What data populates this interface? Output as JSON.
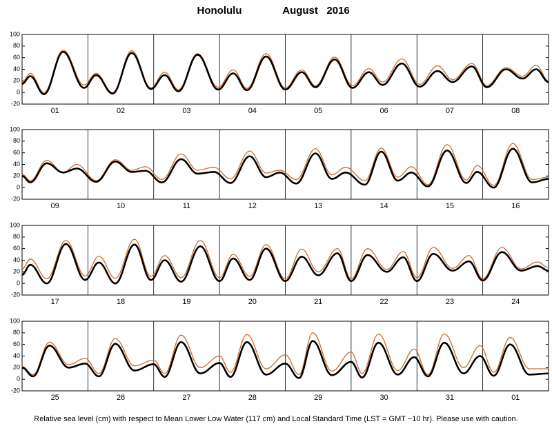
{
  "title": "Honolulu",
  "subtitle": "August   2016",
  "note": "Relative sea level (cm) with respect to Mean Lower Low Water (117 cm) and Local Standard Time (LST = GMT −10 hr). Please use with caution.",
  "chart_data": [
    {
      "type": "line",
      "categories": [
        "01",
        "02",
        "03",
        "04",
        "05",
        "06",
        "07",
        "08"
      ],
      "x": [
        0,
        3,
        8,
        15,
        22.6,
        27,
        33,
        40,
        47,
        52,
        57,
        64,
        71.5,
        77,
        82,
        89,
        96,
        102,
        107,
        114,
        120.5,
        126.5,
        131.5,
        138.5,
        145,
        151.5,
        157,
        164,
        169.5,
        176.5,
        182.5,
        187.5,
        192
      ],
      "series": [
        {
          "color": "#cc6a2a",
          "values": [
            18,
            33,
            0,
            73,
            13,
            33,
            0,
            72,
            8,
            35,
            5,
            67,
            9,
            39,
            7,
            67,
            8,
            39,
            12,
            61,
            12,
            41,
            18,
            58,
            14,
            46,
            22,
            50,
            12,
            43,
            28,
            47,
            20
          ]
        },
        {
          "color": "#000000",
          "values": [
            15,
            28,
            -3,
            70,
            8,
            30,
            -2,
            68,
            6,
            30,
            2,
            65,
            5,
            33,
            4,
            62,
            5,
            35,
            9,
            57,
            8,
            35,
            13,
            50,
            10,
            37,
            18,
            45,
            9,
            40,
            24,
            40,
            18
          ]
        }
      ],
      "xlim": [
        0,
        192
      ],
      "xticks": [
        24,
        48,
        72,
        96,
        120,
        144,
        168
      ],
      "ylim": [
        -20,
        100
      ],
      "yticks": [
        -20,
        0,
        20,
        40,
        60,
        80,
        100
      ]
    },
    {
      "type": "line",
      "categories": [
        "09",
        "10",
        "11",
        "12",
        "13",
        "14",
        "15",
        "16"
      ],
      "x": [
        0,
        3,
        9,
        15,
        20,
        27,
        34,
        40,
        45,
        51,
        58,
        64,
        70,
        76,
        83,
        89,
        94,
        100,
        107,
        113,
        118,
        125,
        131,
        137,
        142,
        148,
        155,
        162,
        166,
        172,
        179,
        186,
        192
      ],
      "series": [
        {
          "color": "#cc6a2a",
          "values": [
            23,
            12,
            47,
            26,
            40,
            12,
            48,
            30,
            36,
            14,
            58,
            30,
            35,
            15,
            63,
            25,
            30,
            14,
            67,
            22,
            35,
            12,
            68,
            18,
            36,
            5,
            74,
            13,
            38,
            4,
            76,
            14,
            18
          ]
        },
        {
          "color": "#000000",
          "values": [
            20,
            9,
            42,
            26,
            33,
            10,
            45,
            27,
            29,
            9,
            49,
            24,
            27,
            8,
            54,
            18,
            26,
            7,
            59,
            15,
            26,
            5,
            62,
            12,
            26,
            2,
            64,
            8,
            27,
            0,
            67,
            9,
            15
          ]
        }
      ],
      "xlim": [
        0,
        192
      ],
      "xticks": [
        24,
        48,
        72,
        96,
        120,
        144,
        168
      ],
      "ylim": [
        -20,
        100
      ],
      "yticks": [
        -20,
        0,
        20,
        40,
        60,
        80,
        100
      ]
    },
    {
      "type": "line",
      "categories": [
        "17",
        "18",
        "19",
        "20",
        "21",
        "22",
        "23",
        "24"
      ],
      "x": [
        0,
        3,
        9,
        16,
        23,
        28,
        34,
        41,
        47,
        52,
        58,
        65,
        72,
        77,
        83,
        89,
        96,
        102,
        108,
        115,
        120,
        126,
        133,
        139,
        144,
        150,
        157,
        163,
        168,
        175,
        182,
        188,
        192
      ],
      "series": [
        {
          "color": "#cc6a2a",
          "values": [
            25,
            42,
            8,
            74,
            13,
            47,
            9,
            76,
            12,
            48,
            10,
            74,
            10,
            50,
            12,
            67,
            8,
            59,
            20,
            60,
            8,
            60,
            24,
            55,
            10,
            62,
            26,
            48,
            8,
            62,
            25,
            37,
            27
          ]
        },
        {
          "color": "#000000",
          "values": [
            15,
            32,
            0,
            68,
            6,
            36,
            0,
            67,
            6,
            40,
            3,
            64,
            4,
            43,
            6,
            60,
            4,
            46,
            14,
            52,
            4,
            49,
            20,
            45,
            4,
            51,
            22,
            38,
            5,
            54,
            22,
            30,
            22
          ]
        }
      ],
      "xlim": [
        0,
        192
      ],
      "xticks": [
        24,
        48,
        72,
        96,
        120,
        144,
        168
      ],
      "ylim": [
        -20,
        100
      ],
      "yticks": [
        -20,
        0,
        20,
        40,
        60,
        80,
        100
      ]
    },
    {
      "type": "line",
      "categories": [
        "25",
        "26",
        "27",
        "28",
        "29",
        "30",
        "31",
        "01"
      ],
      "x": [
        0,
        4,
        10,
        17,
        23,
        28,
        34,
        41,
        48,
        52,
        58,
        65,
        72,
        76,
        82,
        89,
        96,
        101,
        106,
        113,
        120,
        124,
        130,
        137,
        143,
        148,
        154,
        161,
        167,
        172,
        178,
        185,
        192
      ],
      "series": [
        {
          "color": "#cc6a2a",
          "values": [
            22,
            8,
            64,
            25,
            36,
            10,
            70,
            23,
            33,
            10,
            76,
            20,
            40,
            12,
            77,
            18,
            42,
            8,
            80,
            14,
            47,
            10,
            78,
            15,
            52,
            8,
            78,
            20,
            58,
            12,
            72,
            18,
            18
          ]
        },
        {
          "color": "#000000",
          "values": [
            20,
            5,
            58,
            20,
            27,
            5,
            61,
            15,
            26,
            4,
            64,
            10,
            28,
            4,
            64,
            8,
            27,
            2,
            66,
            7,
            30,
            3,
            63,
            8,
            38,
            5,
            63,
            10,
            40,
            6,
            60,
            8,
            10
          ]
        }
      ],
      "xlim": [
        0,
        192
      ],
      "xticks": [
        24,
        48,
        72,
        96,
        120,
        144,
        168
      ],
      "ylim": [
        -20,
        100
      ],
      "yticks": [
        -20,
        0,
        20,
        40,
        60,
        80,
        100
      ]
    }
  ]
}
